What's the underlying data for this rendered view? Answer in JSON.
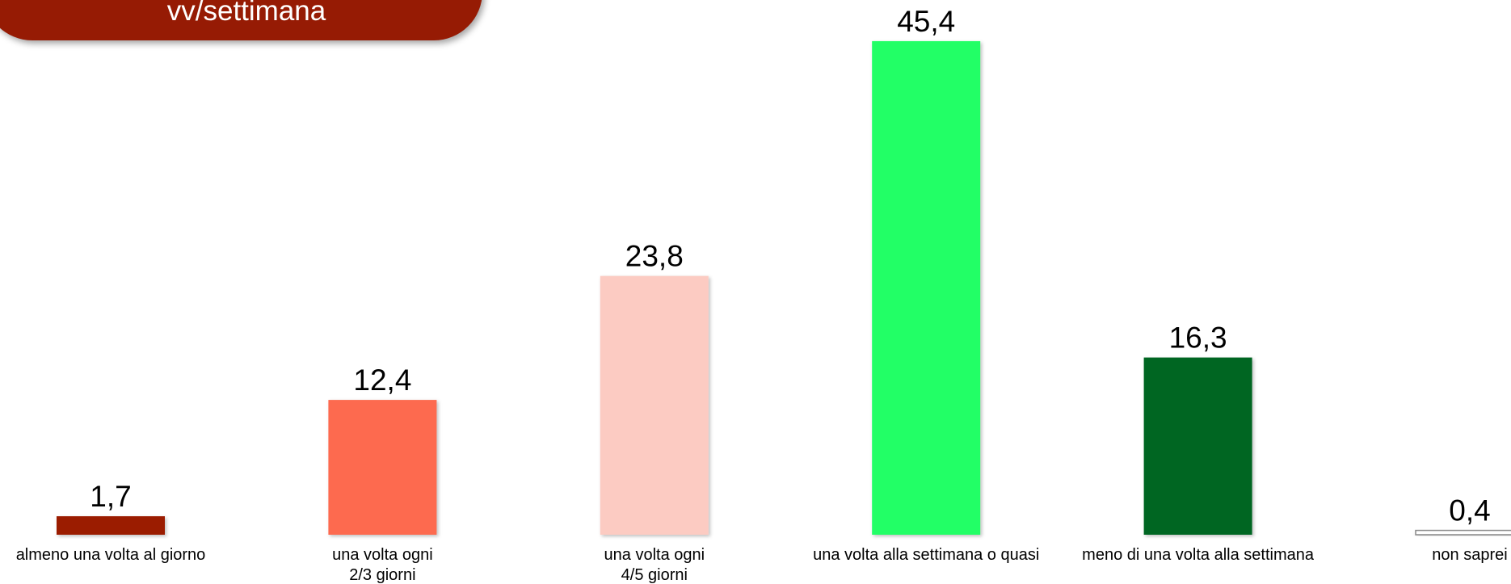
{
  "chart_data": {
    "type": "bar",
    "title": "vv/settimana",
    "categories": [
      "almeno una volta al giorno",
      "una volta ogni\n2/3 giorni",
      "una volta ogni\n4/5 giorni",
      "una volta alla settimana o quasi",
      "meno di una volta alla settimana",
      "non saprei"
    ],
    "values": [
      1.7,
      12.4,
      23.8,
      45.4,
      16.3,
      0.4
    ],
    "value_labels": [
      "1,7",
      "12,4",
      "23,8",
      "45,4",
      "16,3",
      "0,4"
    ],
    "colors": [
      "#9b1c05",
      "#fd6a4f",
      "#fccbc2",
      "#21ff66",
      "#006622",
      "#ffffff"
    ]
  }
}
